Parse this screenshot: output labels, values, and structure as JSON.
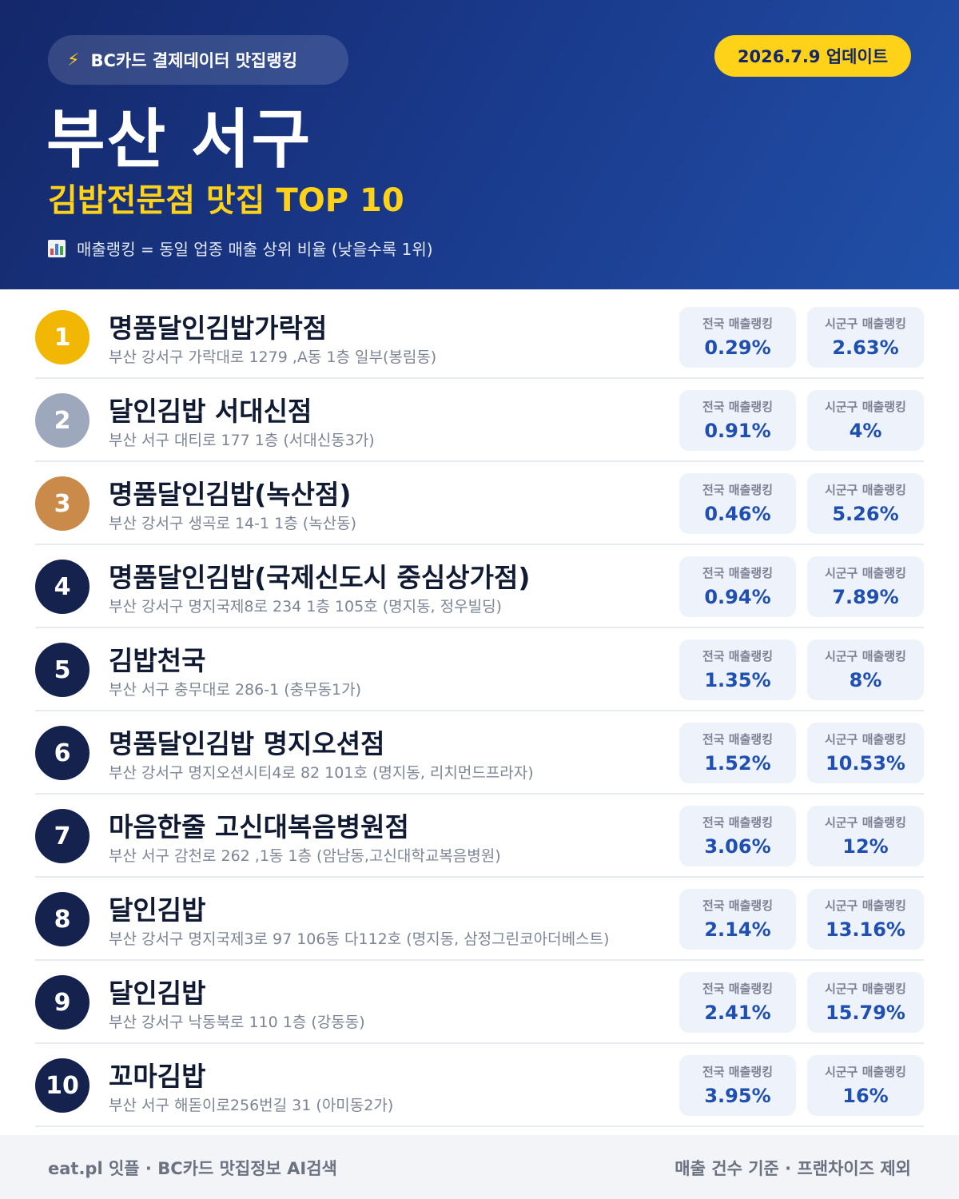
{
  "header": {
    "pill_label": "BC카드 결제데이터 맛집랭킹",
    "bolt_icon": "⚡",
    "date_badge": "2026.7.9 업데이트",
    "region": "부산 서구",
    "category": "김밥전문점 맛집 TOP 10",
    "legend_note": "매출랭킹 = 동일 업종 매출 상위 비율 (낮을수록 1위)"
  },
  "labels": {
    "national": "전국 매출랭킹",
    "local": "시군구 매출랭킹"
  },
  "colors": {
    "header_dark": "#14286a",
    "accent_yellow": "#ffd21a",
    "rank_gold": "#f2b705",
    "rank_silver": "#9ea8bc",
    "rank_bronze": "#c98a4a",
    "rank_default": "#14224d",
    "value_blue": "#1f4fb0"
  },
  "restaurants": [
    {
      "rank": "1",
      "name": "명품달인김밥가락점",
      "address": "부산 강서구 가락대로 1279 ,A동 1층 일부(봉림동)",
      "national": "0.29%",
      "local": "2.63%"
    },
    {
      "rank": "2",
      "name": "달인김밥 서대신점",
      "address": "부산 서구 대티로 177 1층 (서대신동3가)",
      "national": "0.91%",
      "local": "4%"
    },
    {
      "rank": "3",
      "name": "명품달인김밥(녹산점)",
      "address": "부산 강서구 생곡로 14-1 1층 (녹산동)",
      "national": "0.46%",
      "local": "5.26%"
    },
    {
      "rank": "4",
      "name": "명품달인김밥(국제신도시 중심상가점)",
      "address": "부산 강서구 명지국제8로 234 1층 105호 (명지동, 정우빌딩)",
      "national": "0.94%",
      "local": "7.89%"
    },
    {
      "rank": "5",
      "name": "김밥천국",
      "address": "부산 서구 충무대로 286-1 (충무동1가)",
      "national": "1.35%",
      "local": "8%"
    },
    {
      "rank": "6",
      "name": "명품달인김밥 명지오션점",
      "address": "부산 강서구 명지오션시티4로 82 101호 (명지동, 리치먼드프라자)",
      "national": "1.52%",
      "local": "10.53%"
    },
    {
      "rank": "7",
      "name": "마음한줄 고신대복음병원점",
      "address": "부산 서구 감천로 262 ,1동 1층 (암남동,고신대학교복음병원)",
      "national": "3.06%",
      "local": "12%"
    },
    {
      "rank": "8",
      "name": "달인김밥",
      "address": "부산 강서구 명지국제3로 97 106동 다112호 (명지동, 삼정그린코아더베스트)",
      "national": "2.14%",
      "local": "13.16%"
    },
    {
      "rank": "9",
      "name": "달인김밥",
      "address": "부산 강서구 낙동북로 110 1층 (강동동)",
      "national": "2.41%",
      "local": "15.79%"
    },
    {
      "rank": "10",
      "name": "꼬마김밥",
      "address": "부산 서구 해돋이로256번길 31 (아미동2가)",
      "national": "3.95%",
      "local": "16%"
    }
  ],
  "footer": {
    "left": "eat.pl 잇플 · BC카드 맛집정보 AI검색",
    "right": "매출 건수 기준 · 프랜차이즈 제외"
  }
}
